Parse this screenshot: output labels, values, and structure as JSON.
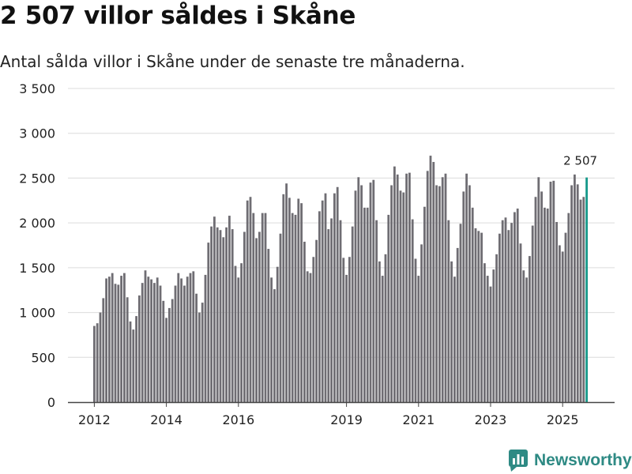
{
  "title": "2 507 villor såldes i Skåne",
  "subtitle": "Antal sålda villor i Skåne under de senaste tre månaderna.",
  "brand": {
    "name": "Newsworthy",
    "color": "#2e8a84"
  },
  "colors": {
    "bar": "#6f6d73",
    "highlight": "#16998a",
    "grid": "#dcdcdc",
    "axis": "#444444"
  },
  "chart_data": {
    "type": "bar",
    "title": "2 507 villor såldes i Skåne",
    "xlabel": "",
    "ylabel": "",
    "ylim": [
      0,
      3500
    ],
    "yticks": [
      0,
      500,
      1000,
      1500,
      2000,
      2500,
      3000,
      3500
    ],
    "ytick_labels": [
      "0",
      "500",
      "1 000",
      "1 500",
      "2 000",
      "2 500",
      "3 000",
      "3 500"
    ],
    "xtick_labels": [
      {
        "label": "2012",
        "year": 2012
      },
      {
        "label": "2014",
        "year": 2014
      },
      {
        "label": "2016",
        "year": 2016
      },
      {
        "label": "2019",
        "year": 2019
      },
      {
        "label": "2021",
        "year": 2021
      },
      {
        "label": "2023",
        "year": 2023
      },
      {
        "label": "2025",
        "year": 2025
      }
    ],
    "start": "2012-01",
    "interval": "monthly",
    "highlight_last": true,
    "last_label": "2 507",
    "values": [
      850,
      880,
      1000,
      1160,
      1380,
      1400,
      1440,
      1320,
      1310,
      1410,
      1440,
      1170,
      900,
      810,
      960,
      1190,
      1330,
      1470,
      1400,
      1370,
      1330,
      1390,
      1300,
      1130,
      940,
      1050,
      1150,
      1300,
      1440,
      1380,
      1300,
      1400,
      1440,
      1460,
      1210,
      1000,
      1110,
      1420,
      1780,
      1960,
      2070,
      1950,
      1920,
      1840,
      1950,
      2080,
      1930,
      1520,
      1390,
      1550,
      1900,
      2250,
      2290,
      2110,
      1830,
      1900,
      2110,
      2110,
      1710,
      1390,
      1260,
      1510,
      1880,
      2320,
      2440,
      2280,
      2110,
      2090,
      2270,
      2220,
      1790,
      1460,
      1440,
      1620,
      1810,
      2130,
      2250,
      2330,
      1930,
      2050,
      2330,
      2400,
      2030,
      1610,
      1420,
      1620,
      1960,
      2360,
      2510,
      2420,
      2170,
      2170,
      2450,
      2480,
      2030,
      1570,
      1410,
      1650,
      2090,
      2420,
      2630,
      2540,
      2360,
      2340,
      2550,
      2560,
      2040,
      1600,
      1410,
      1760,
      2180,
      2580,
      2750,
      2680,
      2420,
      2410,
      2510,
      2550,
      2030,
      1570,
      1400,
      1720,
      1990,
      2350,
      2550,
      2420,
      2170,
      1940,
      1910,
      1890,
      1550,
      1410,
      1290,
      1480,
      1650,
      1880,
      2030,
      2060,
      1920,
      2000,
      2120,
      2160,
      1770,
      1470,
      1390,
      1630,
      1970,
      2290,
      2510,
      2350,
      2170,
      2160,
      2460,
      2470,
      2010,
      1750,
      1680,
      1890,
      2110,
      2420,
      2540,
      2430,
      2260,
      2290,
      2507
    ]
  }
}
